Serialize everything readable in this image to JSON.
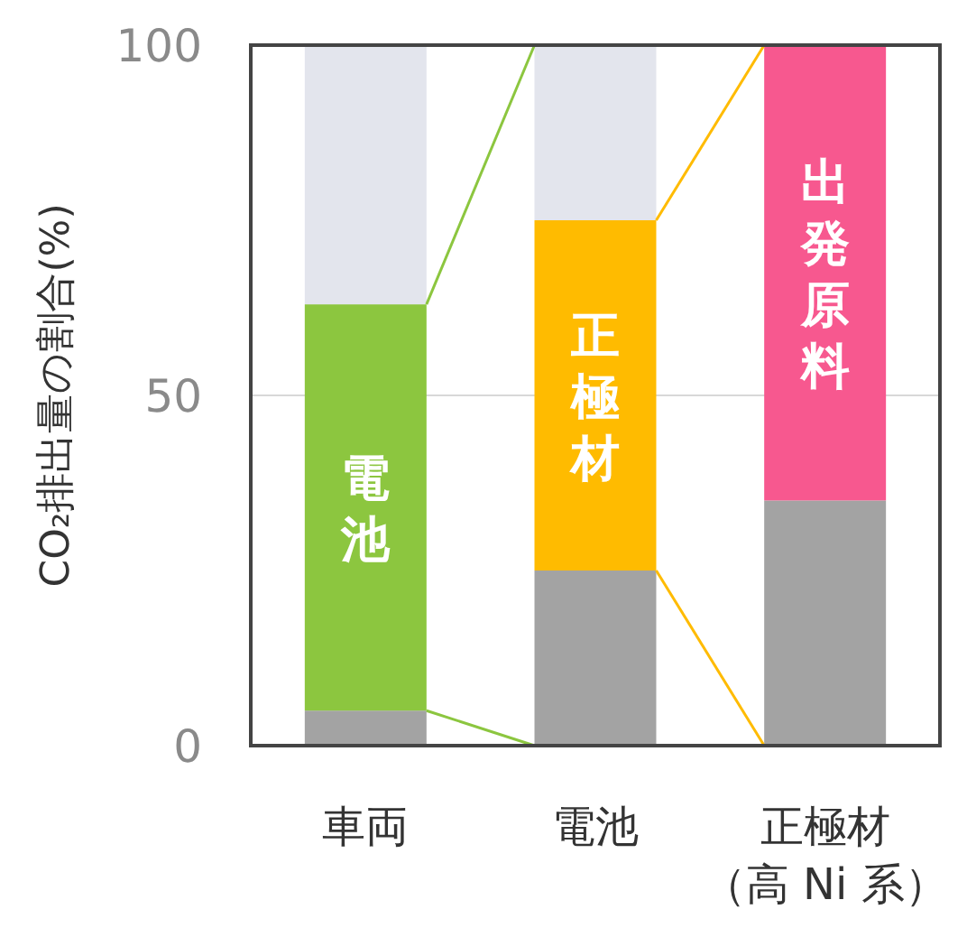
{
  "chart_data": {
    "type": "bar",
    "stacked": true,
    "ylabel": "CO₂排出量の割合(%)",
    "categories": [
      "車両",
      "電池",
      "正極材（高 Ni 系）"
    ],
    "series": [
      {
        "color": "#a3a3a3",
        "values": [
          5,
          25,
          35
        ]
      },
      {
        "colors": [
          "#8cc63f",
          "#ffbb00",
          "#f7588f"
        ],
        "values": [
          58,
          50,
          65
        ]
      },
      {
        "color": "#e3e5ed",
        "values": [
          37,
          25,
          0
        ]
      }
    ],
    "ylim": [
      0,
      100
    ],
    "yticks": [
      0,
      50,
      100
    ],
    "grid": "y",
    "annotations": [
      "電池",
      "正極材",
      "出発原料"
    ]
  }
}
